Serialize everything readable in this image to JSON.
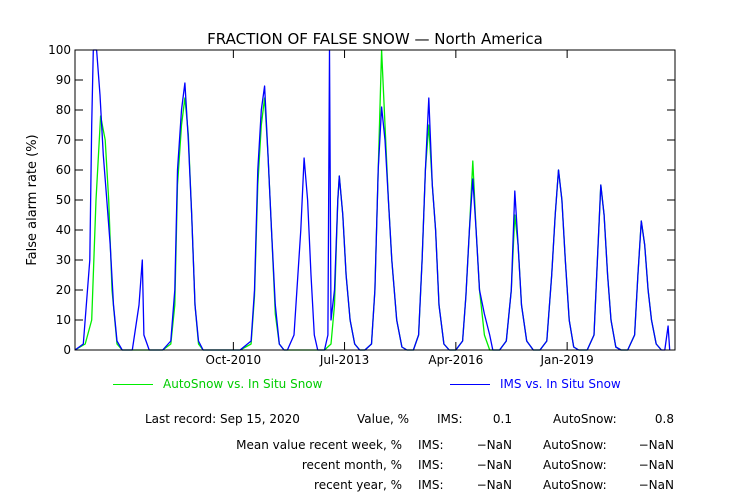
{
  "chart_data": {
    "type": "line",
    "title": "FRACTION OF FALSE SNOW — North America",
    "ylabel": "False alarm rate (%)",
    "xlabel": "",
    "ylim": [
      0,
      100
    ],
    "y_ticks": [
      0,
      10,
      20,
      30,
      40,
      50,
      60,
      70,
      80,
      90,
      100
    ],
    "xlim": [
      "2006-11-01",
      "2021-09-01"
    ],
    "x_ticks": [
      {
        "label": "Oct-2010",
        "date": "2010-10-01"
      },
      {
        "label": "Jul-2013",
        "date": "2013-07-01"
      },
      {
        "label": "Apr-2016",
        "date": "2016-04-01"
      },
      {
        "label": "Jan-2019",
        "date": "2019-01-01"
      }
    ],
    "grid": false,
    "legend_position": "bottom",
    "series": [
      {
        "name": "AutoSnow vs. In Situ Snow",
        "color": "#00ee00",
        "points": [
          [
            "2006-11-01",
            0
          ],
          [
            "2007-02-01",
            2
          ],
          [
            "2007-04-01",
            10
          ],
          [
            "2007-05-10",
            50
          ],
          [
            "2007-06-20",
            78
          ],
          [
            "2007-08-01",
            70
          ],
          [
            "2007-09-01",
            50
          ],
          [
            "2007-10-01",
            20
          ],
          [
            "2007-11-15",
            2
          ],
          [
            "2008-01-01",
            0
          ],
          [
            "2009-01-01",
            0
          ],
          [
            "2009-03-15",
            2
          ],
          [
            "2009-04-20",
            15
          ],
          [
            "2009-05-15",
            55
          ],
          [
            "2009-06-20",
            75
          ],
          [
            "2009-07-20",
            84
          ],
          [
            "2009-08-20",
            72
          ],
          [
            "2009-09-20",
            45
          ],
          [
            "2009-10-20",
            15
          ],
          [
            "2009-11-20",
            2
          ],
          [
            "2010-01-01",
            0
          ],
          [
            "2010-12-01",
            0
          ],
          [
            "2011-03-10",
            2
          ],
          [
            "2011-04-10",
            18
          ],
          [
            "2011-05-10",
            55
          ],
          [
            "2011-06-10",
            75
          ],
          [
            "2011-07-10",
            84
          ],
          [
            "2011-08-10",
            65
          ],
          [
            "2011-09-10",
            40
          ],
          [
            "2011-10-15",
            12
          ],
          [
            "2011-11-20",
            2
          ],
          [
            "2012-01-01",
            0
          ],
          [
            "2013-01-01",
            0
          ],
          [
            "2013-03-01",
            2
          ],
          [
            "2013-04-01",
            15
          ],
          [
            "2013-05-01",
            50
          ],
          [
            "2013-05-15",
            58
          ],
          [
            "2013-06-15",
            45
          ],
          [
            "2013-07-15",
            25
          ],
          [
            "2013-08-20",
            10
          ],
          [
            "2013-10-01",
            2
          ],
          [
            "2013-11-15",
            0
          ],
          [
            "2014-01-01",
            0
          ],
          [
            "2014-03-01",
            2
          ],
          [
            "2014-04-01",
            20
          ],
          [
            "2014-05-01",
            60
          ],
          [
            "2014-06-01",
            100
          ],
          [
            "2014-07-01",
            75
          ],
          [
            "2014-08-01",
            50
          ],
          [
            "2014-09-01",
            30
          ],
          [
            "2014-10-15",
            10
          ],
          [
            "2014-12-01",
            1
          ],
          [
            "2015-01-15",
            0
          ],
          [
            "2015-03-15",
            0
          ],
          [
            "2015-05-01",
            5
          ],
          [
            "2015-06-01",
            30
          ],
          [
            "2015-07-01",
            60
          ],
          [
            "2015-08-01",
            75
          ],
          [
            "2015-09-01",
            55
          ],
          [
            "2015-10-01",
            40
          ],
          [
            "2015-11-01",
            15
          ],
          [
            "2015-12-15",
            2
          ],
          [
            "2016-02-01",
            0
          ],
          [
            "2016-04-01",
            0
          ],
          [
            "2016-06-01",
            3
          ],
          [
            "2016-07-01",
            18
          ],
          [
            "2016-08-01",
            40
          ],
          [
            "2016-09-01",
            63
          ],
          [
            "2016-10-01",
            40
          ],
          [
            "2016-11-01",
            20
          ],
          [
            "2016-12-15",
            5
          ],
          [
            "2017-02-01",
            0
          ],
          [
            "2017-05-01",
            0
          ],
          [
            "2017-07-01",
            3
          ],
          [
            "2017-08-15",
            20
          ],
          [
            "2017-09-15",
            45
          ],
          [
            "2017-10-15",
            35
          ],
          [
            "2017-11-15",
            15
          ],
          [
            "2018-01-01",
            3
          ],
          [
            "2018-03-01",
            0
          ],
          [
            "2018-05-01",
            0
          ],
          [
            "2018-07-01",
            3
          ],
          [
            "2018-08-15",
            25
          ],
          [
            "2018-09-15",
            45
          ],
          [
            "2018-10-15",
            60
          ],
          [
            "2018-11-15",
            50
          ],
          [
            "2018-12-15",
            30
          ],
          [
            "2019-01-20",
            10
          ],
          [
            "2019-03-01",
            1
          ],
          [
            "2019-04-15",
            0
          ],
          [
            "2019-07-01",
            0
          ],
          [
            "2019-09-01",
            5
          ],
          [
            "2019-10-01",
            30
          ],
          [
            "2019-11-01",
            55
          ],
          [
            "2019-12-01",
            45
          ],
          [
            "2020-01-01",
            25
          ],
          [
            "2020-02-01",
            10
          ],
          [
            "2020-03-15",
            1
          ],
          [
            "2020-05-01",
            0
          ],
          [
            "2020-07-01",
            0
          ],
          [
            "2020-09-01",
            5
          ],
          [
            "2020-10-01",
            25
          ],
          [
            "2020-11-01",
            43
          ],
          [
            "2020-12-01",
            35
          ],
          [
            "2021-01-01",
            20
          ],
          [
            "2021-02-01",
            10
          ],
          [
            "2021-03-15",
            2
          ],
          [
            "2021-05-01",
            0
          ]
        ]
      },
      {
        "name": "IMS vs. In Situ Snow",
        "color": "#0000ff",
        "points": [
          [
            "2006-11-01",
            0
          ],
          [
            "2007-01-15",
            2
          ],
          [
            "2007-03-15",
            30
          ],
          [
            "2007-04-01",
            75
          ],
          [
            "2007-04-15",
            100
          ],
          [
            "2007-05-15",
            100
          ],
          [
            "2007-06-15",
            85
          ],
          [
            "2007-07-15",
            65
          ],
          [
            "2007-08-15",
            50
          ],
          [
            "2007-09-15",
            35
          ],
          [
            "2007-10-15",
            15
          ],
          [
            "2007-11-15",
            3
          ],
          [
            "2008-01-01",
            0
          ],
          [
            "2008-04-01",
            0
          ],
          [
            "2008-06-01",
            15
          ],
          [
            "2008-07-01",
            30
          ],
          [
            "2008-07-15",
            5
          ],
          [
            "2008-09-01",
            0
          ],
          [
            "2009-01-01",
            0
          ],
          [
            "2009-03-15",
            3
          ],
          [
            "2009-04-20",
            20
          ],
          [
            "2009-05-15",
            60
          ],
          [
            "2009-06-20",
            80
          ],
          [
            "2009-07-20",
            89
          ],
          [
            "2009-08-20",
            70
          ],
          [
            "2009-09-20",
            45
          ],
          [
            "2009-10-20",
            15
          ],
          [
            "2009-11-20",
            3
          ],
          [
            "2010-01-01",
            0
          ],
          [
            "2010-12-01",
            0
          ],
          [
            "2011-03-10",
            3
          ],
          [
            "2011-04-10",
            20
          ],
          [
            "2011-05-10",
            60
          ],
          [
            "2011-06-10",
            80
          ],
          [
            "2011-07-10",
            88
          ],
          [
            "2011-08-10",
            65
          ],
          [
            "2011-09-10",
            40
          ],
          [
            "2011-10-15",
            15
          ],
          [
            "2011-11-20",
            2
          ],
          [
            "2012-01-01",
            0
          ],
          [
            "2012-02-01",
            0
          ],
          [
            "2012-04-01",
            5
          ],
          [
            "2012-06-01",
            40
          ],
          [
            "2012-07-01",
            64
          ],
          [
            "2012-08-01",
            50
          ],
          [
            "2012-09-01",
            25
          ],
          [
            "2012-10-01",
            5
          ],
          [
            "2012-11-01",
            0
          ],
          [
            "2013-01-01",
            0
          ],
          [
            "2013-02-01",
            5
          ],
          [
            "2013-02-15",
            100
          ],
          [
            "2013-03-01",
            10
          ],
          [
            "2013-04-01",
            20
          ],
          [
            "2013-05-01",
            50
          ],
          [
            "2013-05-15",
            58
          ],
          [
            "2013-06-15",
            45
          ],
          [
            "2013-07-15",
            25
          ],
          [
            "2013-08-20",
            10
          ],
          [
            "2013-10-01",
            2
          ],
          [
            "2013-11-15",
            0
          ],
          [
            "2014-01-01",
            0
          ],
          [
            "2014-03-01",
            2
          ],
          [
            "2014-04-01",
            20
          ],
          [
            "2014-05-01",
            60
          ],
          [
            "2014-06-01",
            81
          ],
          [
            "2014-07-01",
            70
          ],
          [
            "2014-08-01",
            50
          ],
          [
            "2014-09-01",
            30
          ],
          [
            "2014-10-15",
            10
          ],
          [
            "2014-12-01",
            1
          ],
          [
            "2015-01-15",
            0
          ],
          [
            "2015-03-15",
            0
          ],
          [
            "2015-05-01",
            5
          ],
          [
            "2015-06-01",
            30
          ],
          [
            "2015-07-01",
            60
          ],
          [
            "2015-08-01",
            84
          ],
          [
            "2015-09-01",
            55
          ],
          [
            "2015-10-01",
            40
          ],
          [
            "2015-11-01",
            15
          ],
          [
            "2015-12-15",
            2
          ],
          [
            "2016-02-01",
            0
          ],
          [
            "2016-04-01",
            0
          ],
          [
            "2016-06-01",
            3
          ],
          [
            "2016-07-01",
            18
          ],
          [
            "2016-08-01",
            40
          ],
          [
            "2016-09-01",
            57
          ],
          [
            "2016-10-01",
            40
          ],
          [
            "2016-11-01",
            20
          ],
          [
            "2016-12-15",
            12
          ],
          [
            "2017-02-01",
            5
          ],
          [
            "2017-03-01",
            0
          ],
          [
            "2017-05-01",
            0
          ],
          [
            "2017-07-01",
            3
          ],
          [
            "2017-08-15",
            20
          ],
          [
            "2017-09-15",
            53
          ],
          [
            "2017-10-15",
            35
          ],
          [
            "2017-11-15",
            15
          ],
          [
            "2018-01-01",
            3
          ],
          [
            "2018-03-01",
            0
          ],
          [
            "2018-05-01",
            0
          ],
          [
            "2018-07-01",
            3
          ],
          [
            "2018-08-15",
            25
          ],
          [
            "2018-09-15",
            45
          ],
          [
            "2018-10-15",
            60
          ],
          [
            "2018-11-15",
            50
          ],
          [
            "2018-12-15",
            30
          ],
          [
            "2019-01-20",
            10
          ],
          [
            "2019-03-01",
            1
          ],
          [
            "2019-04-15",
            0
          ],
          [
            "2019-07-01",
            0
          ],
          [
            "2019-09-01",
            5
          ],
          [
            "2019-10-01",
            30
          ],
          [
            "2019-11-01",
            55
          ],
          [
            "2019-12-01",
            45
          ],
          [
            "2020-01-01",
            25
          ],
          [
            "2020-02-01",
            10
          ],
          [
            "2020-03-15",
            1
          ],
          [
            "2020-05-01",
            0
          ],
          [
            "2020-07-01",
            0
          ],
          [
            "2020-09-01",
            5
          ],
          [
            "2020-10-01",
            25
          ],
          [
            "2020-11-01",
            43
          ],
          [
            "2020-12-01",
            35
          ],
          [
            "2021-01-01",
            20
          ],
          [
            "2021-02-01",
            10
          ],
          [
            "2021-03-15",
            2
          ],
          [
            "2021-05-01",
            0
          ],
          [
            "2021-06-01",
            0
          ],
          [
            "2021-07-01",
            8
          ],
          [
            "2021-07-15",
            0
          ]
        ]
      }
    ]
  },
  "legend": [
    {
      "label": "AutoSnow vs. In Situ Snow",
      "color": "#00ee00"
    },
    {
      "label": "IMS vs. In Situ Snow",
      "color": "#0000ff"
    }
  ],
  "stats": {
    "last_record_label": "Last record: Sep 15, 2020",
    "value_label": "Value, %",
    "ims_label": "IMS:",
    "ims_value": "0.1",
    "autosnow_label": "AutoSnow:",
    "autosnow_value": "0.8",
    "rows": [
      {
        "label": "Mean value recent week, %",
        "ims_label": "IMS:",
        "ims": "−NaN",
        "auto_label": "AutoSnow:",
        "auto": "−NaN"
      },
      {
        "label": "recent month, %",
        "ims_label": "IMS:",
        "ims": "−NaN",
        "auto_label": "AutoSnow:",
        "auto": "−NaN"
      },
      {
        "label": "recent year, %",
        "ims_label": "IMS:",
        "ims": "−NaN",
        "auto_label": "AutoSnow:",
        "auto": "−NaN"
      }
    ]
  }
}
